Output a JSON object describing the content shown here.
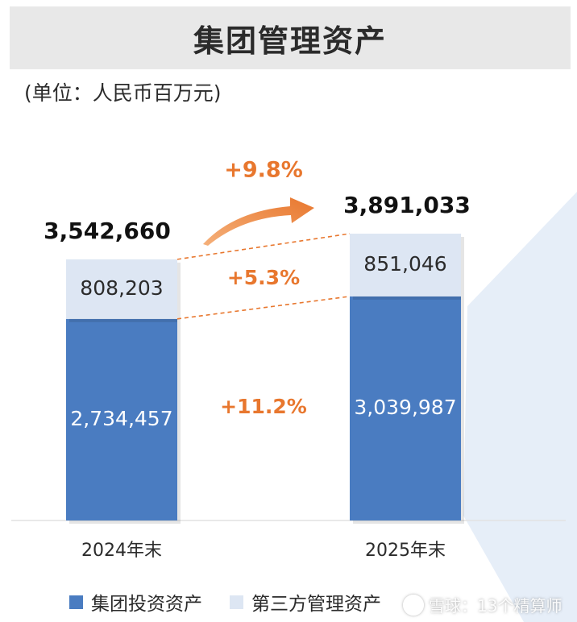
{
  "title": "集团管理资产",
  "unit": "(单位：人民币百万元)",
  "colors": {
    "group_assets": "#4a7cc1",
    "third_party_assets": "#dde6f3",
    "growth": "#e8772e",
    "background_panel": "#e6eef8"
  },
  "chart_data": {
    "type": "bar",
    "stacked": true,
    "categories": [
      "2024年末",
      "2025年末"
    ],
    "series": [
      {
        "name": "集团投资资产",
        "values": [
          2734457,
          3039987
        ],
        "labels": [
          "2,734,457",
          "3,039,987"
        ]
      },
      {
        "name": "第三方管理资产",
        "values": [
          808203,
          851046
        ],
        "labels": [
          "808,203",
          "851,046"
        ]
      }
    ],
    "totals": [
      3542660,
      3891033
    ],
    "total_labels": [
      "3,542,660",
      "3,891,033"
    ],
    "growth": {
      "total": "+9.8%",
      "third_party": "+5.3%",
      "group": "+11.2%"
    },
    "legend_position": "bottom-left"
  },
  "legend": [
    {
      "label": "集团投资资产",
      "color": "#4a7cc1"
    },
    {
      "label": "第三方管理资产",
      "color": "#dde6f3"
    }
  ],
  "watermark": "雪球：13个精算师"
}
